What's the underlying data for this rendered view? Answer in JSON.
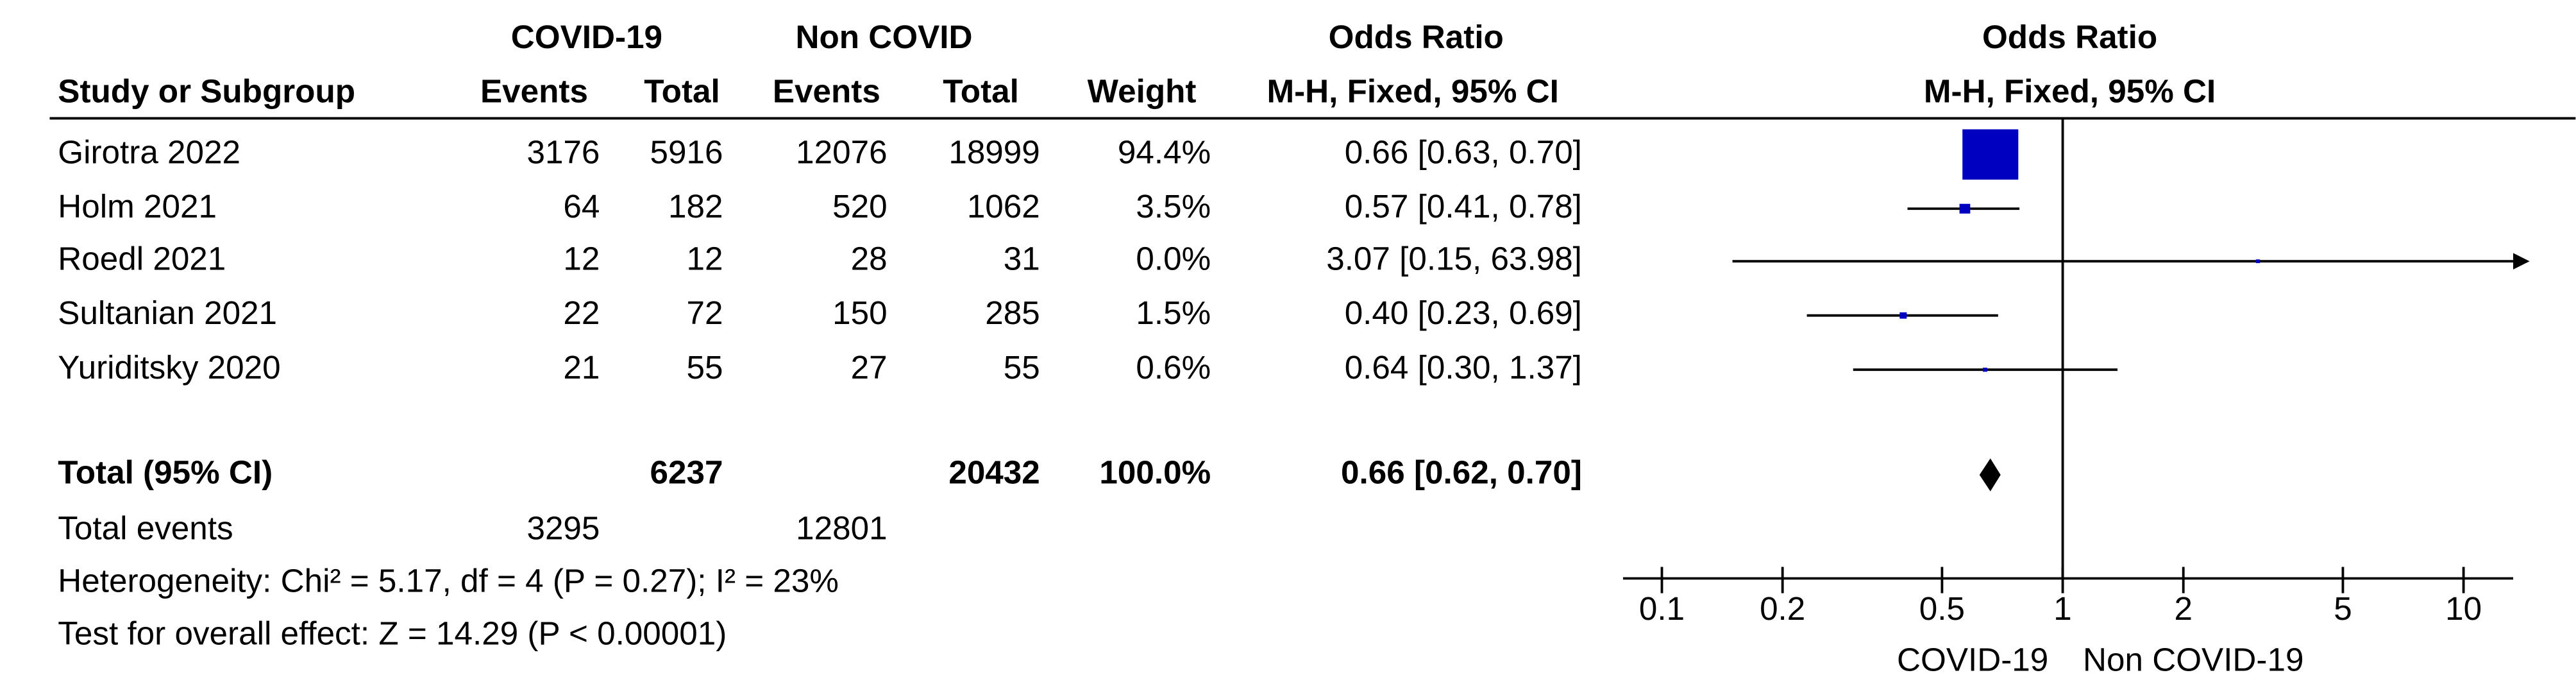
{
  "chart_data": {
    "type": "forest",
    "column_groups": [
      "COVID-19",
      "Non COVID",
      "Odds Ratio",
      "Odds Ratio"
    ],
    "columns": [
      "Study or Subgroup",
      "Events",
      "Total",
      "Events",
      "Total",
      "Weight",
      "M-H, Fixed, 95% CI",
      "M-H, Fixed, 95% CI"
    ],
    "studies": [
      {
        "name": "Girotra 2022",
        "events1": 3176,
        "total1": 5916,
        "events2": 12076,
        "total2": 18999,
        "weight": 94.4,
        "weight_label": "94.4%",
        "or": 0.66,
        "ci": [
          0.63,
          0.7
        ],
        "or_label": "0.66 [0.63, 0.70]"
      },
      {
        "name": "Holm 2021",
        "events1": 64,
        "total1": 182,
        "events2": 520,
        "total2": 1062,
        "weight": 3.5,
        "weight_label": "3.5%",
        "or": 0.57,
        "ci": [
          0.41,
          0.78
        ],
        "or_label": "0.57 [0.41, 0.78]"
      },
      {
        "name": "Roedl 2021",
        "events1": 12,
        "total1": 12,
        "events2": 28,
        "total2": 31,
        "weight": 0,
        "weight_label": "0.0%",
        "or": 3.07,
        "ci": [
          0.15,
          63.98
        ],
        "or_label": "3.07 [0.15, 63.98]"
      },
      {
        "name": "Sultanian 2021",
        "events1": 22,
        "total1": 72,
        "events2": 150,
        "total2": 285,
        "weight": 1.5,
        "weight_label": "1.5%",
        "or": 0.4,
        "ci": [
          0.23,
          0.69
        ],
        "or_label": "0.40 [0.23, 0.69]"
      },
      {
        "name": "Yuriditsky 2020",
        "events1": 21,
        "total1": 55,
        "events2": 27,
        "total2": 55,
        "weight": 0.6,
        "weight_label": "0.6%",
        "or": 0.64,
        "ci": [
          0.3,
          1.37
        ],
        "or_label": "0.64 [0.30, 1.37]"
      }
    ],
    "total": {
      "name": "Total (95% CI)",
      "total1": 6237,
      "total2": 20432,
      "weight": 100,
      "weight_label": "100.0%",
      "or": 0.66,
      "ci": [
        0.62,
        0.7
      ],
      "or_label": "0.66 [0.62, 0.70]"
    },
    "total_events": {
      "name": "Total events",
      "events1": 3295,
      "events2": 12801
    },
    "heterogeneity": "Heterogeneity: Chi² = 5.17, df = 4 (P = 0.27); I² = 23%",
    "overall_effect": "Test for overall effect: Z = 14.29 (P < 0.00001)",
    "xscale": "log",
    "xlim": [
      0.08,
      13.3
    ],
    "xticks": [
      0.1,
      0.2,
      0.5,
      1,
      2,
      5,
      10
    ],
    "xlabel_left": "COVID-19",
    "xlabel_right": "Non COVID-19",
    "square_color": "#0000c0",
    "diamond_color": "#000000"
  }
}
